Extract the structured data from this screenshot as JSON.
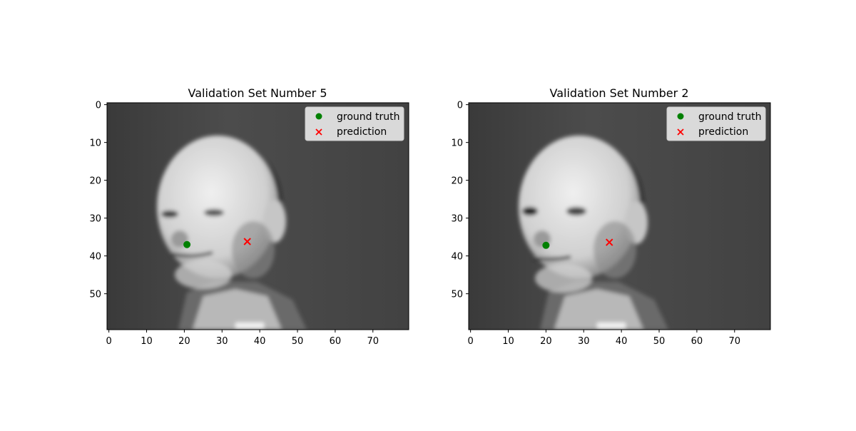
{
  "chart_data": [
    {
      "type": "scatter",
      "title": "Validation Set Number 5",
      "xlabel": "",
      "ylabel": "",
      "background": "grayscale face image (80x60)",
      "xlim": [
        -0.5,
        79.5
      ],
      "ylim": [
        59.5,
        -0.5
      ],
      "xticks": [
        0,
        10,
        20,
        30,
        40,
        50,
        60,
        70
      ],
      "yticks": [
        0,
        10,
        20,
        30,
        40,
        50
      ],
      "legend_position": "top-right",
      "grid": false,
      "series": [
        {
          "name": "ground truth",
          "marker": "circle",
          "color": "#008000",
          "x": [
            20.7
          ],
          "y": [
            37.0
          ]
        },
        {
          "name": "prediction",
          "marker": "x",
          "color": "#ff0000",
          "x": [
            36.7
          ],
          "y": [
            36.2
          ]
        }
      ]
    },
    {
      "type": "scatter",
      "title": "Validation Set Number 2",
      "xlabel": "",
      "ylabel": "",
      "background": "grayscale face image (80x60)",
      "xlim": [
        -0.5,
        79.5
      ],
      "ylim": [
        59.5,
        -0.5
      ],
      "xticks": [
        0,
        10,
        20,
        30,
        40,
        50,
        60,
        70
      ],
      "yticks": [
        0,
        10,
        20,
        30,
        40,
        50
      ],
      "legend_position": "top-right",
      "grid": false,
      "series": [
        {
          "name": "ground truth",
          "marker": "circle",
          "color": "#008000",
          "x": [
            20.0
          ],
          "y": [
            37.2
          ]
        },
        {
          "name": "prediction",
          "marker": "x",
          "color": "#ff0000",
          "x": [
            36.8
          ],
          "y": [
            36.4
          ]
        }
      ]
    }
  ]
}
